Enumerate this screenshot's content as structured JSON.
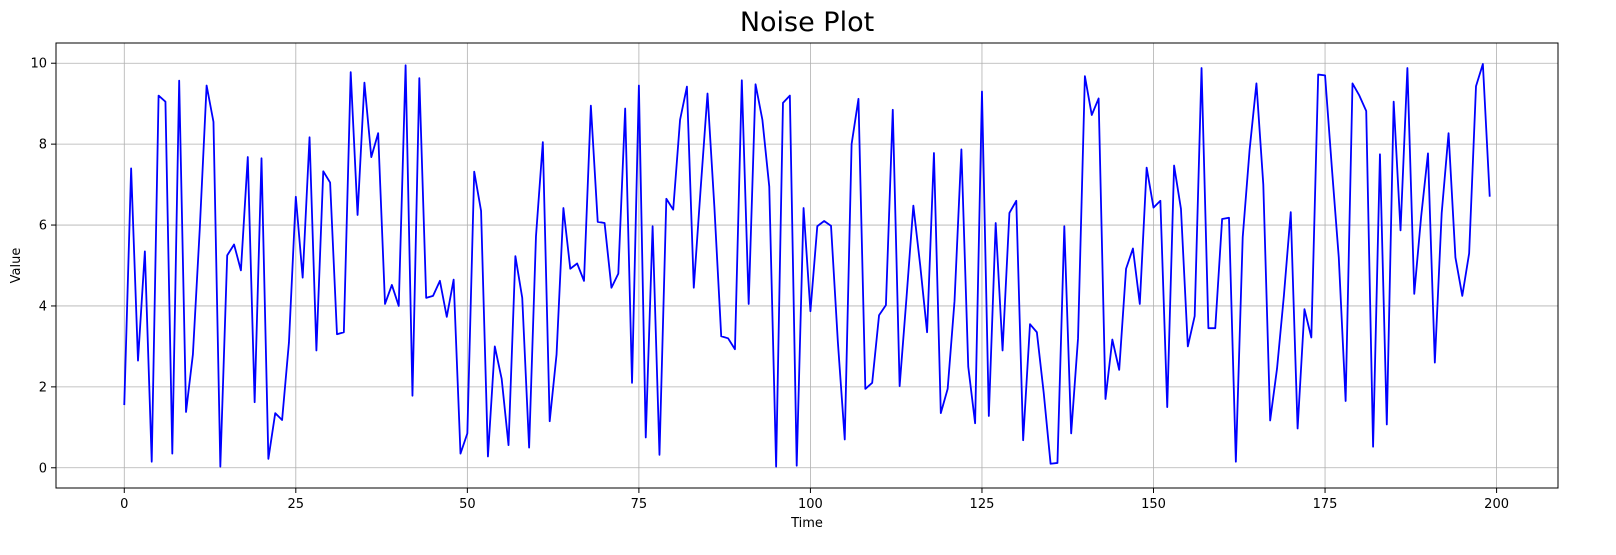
{
  "chart_data": {
    "type": "line",
    "title": "Noise Plot",
    "xlabel": "Time",
    "ylabel": "Value",
    "xlim": [
      -9.95,
      208.95
    ],
    "ylim": [
      -0.5,
      10.5
    ],
    "xticks": [
      0,
      25,
      50,
      75,
      100,
      125,
      150,
      175,
      200
    ],
    "yticks": [
      0,
      2,
      4,
      6,
      8,
      10
    ],
    "grid": true,
    "series": [
      {
        "color": "#0000ff",
        "x": [
          0,
          1,
          2,
          3,
          4,
          5,
          6,
          7,
          8,
          9,
          10,
          11,
          12,
          13,
          14,
          15,
          16,
          17,
          18,
          19,
          20,
          21,
          22,
          23,
          24,
          25,
          26,
          27,
          28,
          29,
          30,
          31,
          32,
          33,
          34,
          35,
          36,
          37,
          38,
          39,
          40,
          41,
          42,
          43,
          44,
          45,
          46,
          47,
          48,
          49,
          50,
          51,
          52,
          53,
          54,
          55,
          56,
          57,
          58,
          59,
          60,
          61,
          62,
          63,
          64,
          65,
          66,
          67,
          68,
          69,
          70,
          71,
          72,
          73,
          74,
          75,
          76,
          77,
          78,
          79,
          80,
          81,
          82,
          83,
          84,
          85,
          86,
          87,
          88,
          89,
          90,
          91,
          92,
          93,
          94,
          95,
          96,
          97,
          98,
          99,
          100,
          101,
          102,
          103,
          104,
          105,
          106,
          107,
          108,
          109,
          110,
          111,
          112,
          113,
          114,
          115,
          116,
          117,
          118,
          119,
          120,
          121,
          122,
          123,
          124,
          125,
          126,
          127,
          128,
          129,
          130,
          131,
          132,
          133,
          134,
          135,
          136,
          137,
          138,
          139,
          140,
          141,
          142,
          143,
          144,
          145,
          146,
          147,
          148,
          149,
          150,
          151,
          152,
          153,
          154,
          155,
          156,
          157,
          158,
          159,
          160,
          161,
          162,
          163,
          164,
          165,
          166,
          167,
          168,
          169,
          170,
          171,
          172,
          173,
          174,
          175,
          176,
          177,
          178,
          179,
          180,
          181,
          182,
          183,
          184,
          185,
          186,
          187,
          188,
          189,
          190,
          191,
          192,
          193,
          194,
          195,
          196,
          197,
          198,
          199
        ],
        "y": [
          1.55,
          7.4,
          2.65,
          5.35,
          0.15,
          9.2,
          9.05,
          0.35,
          9.57,
          1.38,
          2.8,
          5.9,
          9.45,
          8.55,
          0.03,
          5.25,
          5.52,
          4.88,
          7.68,
          1.62,
          7.65,
          0.22,
          1.35,
          1.18,
          3.1,
          6.7,
          4.7,
          8.17,
          2.9,
          7.33,
          7.05,
          3.3,
          3.35,
          9.78,
          6.25,
          9.52,
          7.68,
          8.27,
          4.05,
          4.52,
          4.0,
          9.95,
          1.78,
          9.63,
          4.2,
          4.25,
          4.62,
          3.73,
          4.65,
          0.35,
          0.85,
          7.32,
          6.35,
          0.28,
          3.0,
          2.2,
          0.56,
          5.23,
          4.2,
          0.5,
          5.72,
          8.05,
          1.15,
          2.8,
          6.42,
          4.92,
          5.05,
          4.62,
          8.95,
          6.08,
          6.05,
          4.45,
          4.8,
          8.88,
          2.1,
          9.45,
          0.75,
          5.97,
          0.32,
          6.65,
          6.38,
          8.6,
          9.42,
          4.45,
          6.9,
          9.25,
          6.45,
          3.25,
          3.2,
          2.93,
          9.58,
          4.05,
          9.48,
          8.6,
          6.95,
          0.03,
          9.02,
          9.2,
          0.05,
          6.42,
          3.87,
          5.97,
          6.1,
          5.98,
          3.1,
          0.7,
          8.0,
          9.12,
          1.95,
          2.1,
          3.77,
          4.02,
          8.85,
          2.02,
          4.2,
          6.48,
          5.0,
          3.35,
          7.78,
          1.35,
          1.95,
          4.12,
          7.87,
          2.5,
          1.1,
          9.3,
          1.28,
          6.05,
          2.9,
          6.3,
          6.6,
          0.68,
          3.55,
          3.35,
          1.85,
          0.1,
          0.12,
          5.97,
          0.85,
          3.2,
          9.68,
          8.72,
          9.13,
          1.7,
          3.17,
          2.42,
          4.92,
          5.42,
          4.05,
          7.42,
          6.43,
          6.6,
          1.5,
          7.47,
          6.4,
          3.0,
          3.75,
          9.88,
          3.45,
          3.45,
          6.15,
          6.18,
          0.15,
          5.7,
          7.85,
          9.5,
          7.0,
          1.17,
          2.45,
          4.25,
          6.32,
          0.97,
          3.92,
          3.22,
          9.72,
          9.7,
          7.4,
          5.2,
          1.65,
          9.5,
          9.2,
          8.82,
          0.52,
          7.75,
          1.07,
          9.05,
          5.87,
          9.88,
          4.3,
          6.2,
          7.77,
          2.6,
          6.3,
          8.27,
          5.2,
          4.25,
          5.3,
          9.43,
          9.98,
          6.7
        ]
      }
    ]
  }
}
